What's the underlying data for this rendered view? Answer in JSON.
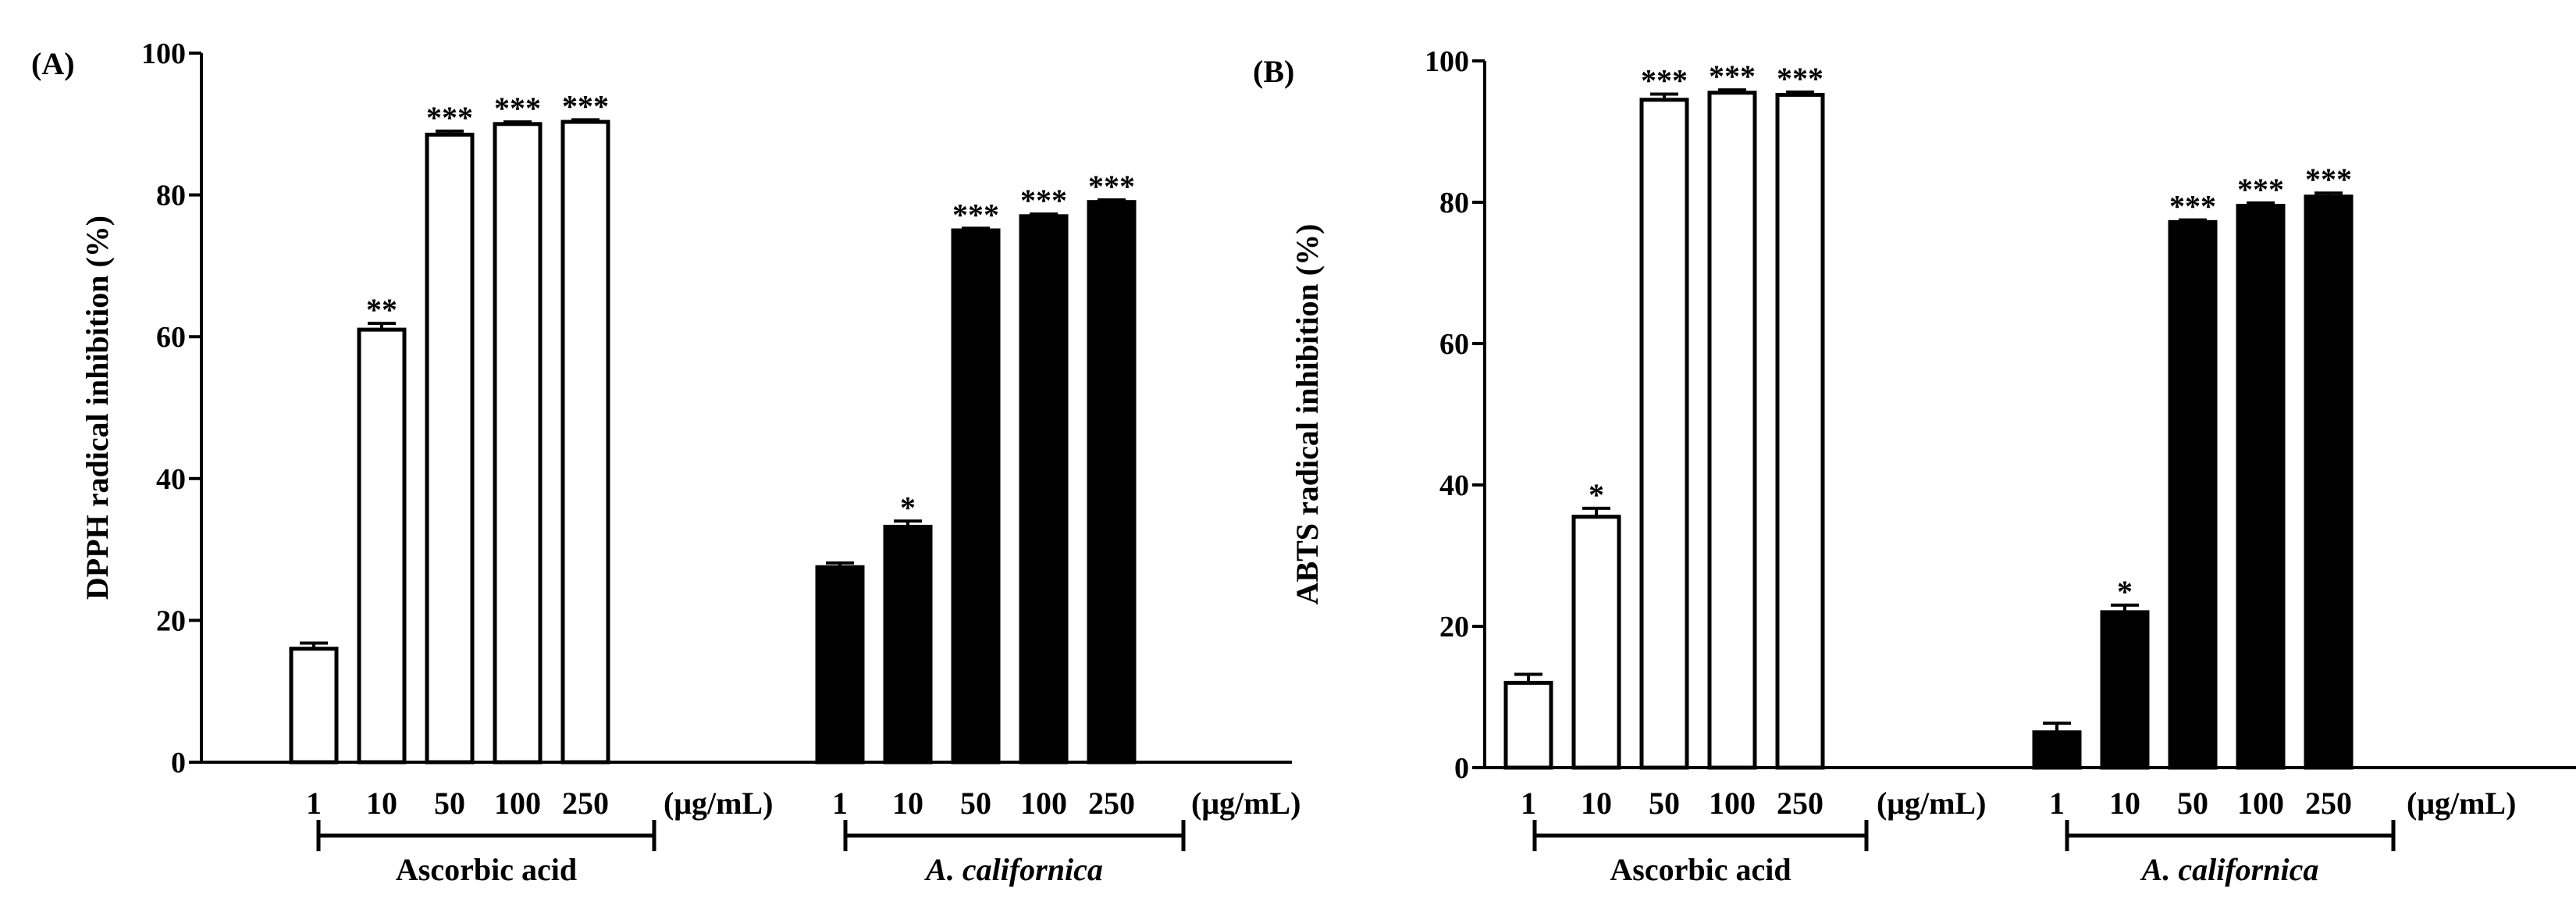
{
  "chart_data": [
    {
      "panel_label": "(A)",
      "type": "bar",
      "title": "",
      "ylabel": "DPPH radical inhibition (%)",
      "ylim": [
        0,
        100
      ],
      "yticks": [
        0,
        20,
        40,
        60,
        80,
        100
      ],
      "unit_label": "(μg/mL)",
      "groups": [
        {
          "name": "Ascorbic acid",
          "italic": false,
          "fill": "#ffffff",
          "categories": [
            "1",
            "10",
            "50",
            "100",
            "250"
          ],
          "values": [
            16,
            61,
            88.5,
            90,
            90.3
          ],
          "errors": [
            0.8,
            0.9,
            0.5,
            0.3,
            0.3
          ],
          "significance": [
            "",
            "**",
            "***",
            "***",
            "***"
          ]
        },
        {
          "name": "A. californica",
          "italic": true,
          "fill": "#000000",
          "categories": [
            "1",
            "10",
            "50",
            "100",
            "250"
          ],
          "values": [
            27.5,
            33.2,
            75,
            77,
            79
          ],
          "errors": [
            0.6,
            0.8,
            0.3,
            0.3,
            0.3
          ],
          "significance": [
            "",
            "*",
            "***",
            "***",
            "***"
          ]
        }
      ]
    },
    {
      "panel_label": "(B)",
      "type": "bar",
      "title": "",
      "ylabel": "ABTS radical inhibition (%)",
      "ylim": [
        0,
        100
      ],
      "yticks": [
        0,
        20,
        40,
        60,
        80,
        100
      ],
      "unit_label": "(μg/mL)",
      "groups": [
        {
          "name": "Ascorbic acid",
          "italic": false,
          "fill": "#ffffff",
          "categories": [
            "1",
            "10",
            "50",
            "100",
            "250"
          ],
          "values": [
            12,
            35.5,
            94.5,
            95.5,
            95.2
          ],
          "errors": [
            1.2,
            1.2,
            0.8,
            0.4,
            0.4
          ],
          "significance": [
            "",
            "*",
            "***",
            "***",
            "***"
          ]
        },
        {
          "name": "A. californica",
          "italic": true,
          "fill": "#000000",
          "categories": [
            "1",
            "10",
            "50",
            "100",
            "250"
          ],
          "values": [
            5,
            22,
            77.2,
            79.5,
            80.8
          ],
          "errors": [
            1.3,
            1.0,
            0.3,
            0.4,
            0.5
          ],
          "significance": [
            "",
            "*",
            "***",
            "***",
            "***"
          ]
        }
      ]
    }
  ]
}
